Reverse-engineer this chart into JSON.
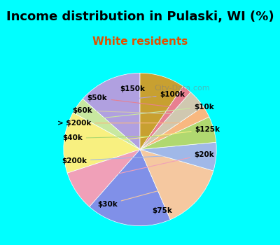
{
  "title": "Income distribution in Pulaski, WI (%)",
  "subtitle": "White residents",
  "background_top": "#00FFFF",
  "background_chart": "#e8f5e9",
  "labels": [
    "$100k",
    "$10k",
    "$125k",
    "$20k",
    "$75k",
    "$30k",
    "$200k",
    "$40k",
    "> $200k",
    "$60k",
    "$50k",
    "$150k"
  ],
  "values": [
    13.5,
    3.5,
    13.0,
    8.5,
    18.0,
    14.0,
    6.0,
    5.5,
    2.5,
    4.0,
    2.0,
    9.5
  ],
  "colors": [
    "#b0a0e0",
    "#c8e8a0",
    "#f8f080",
    "#f0a0b8",
    "#8090e8",
    "#f5c8a0",
    "#a0b8e8",
    "#b0d870",
    "#f8b880",
    "#d0c8b0",
    "#e88090",
    "#c8a030"
  ],
  "title_fontsize": 13,
  "subtitle_fontsize": 11,
  "watermark": "City-Data.com"
}
